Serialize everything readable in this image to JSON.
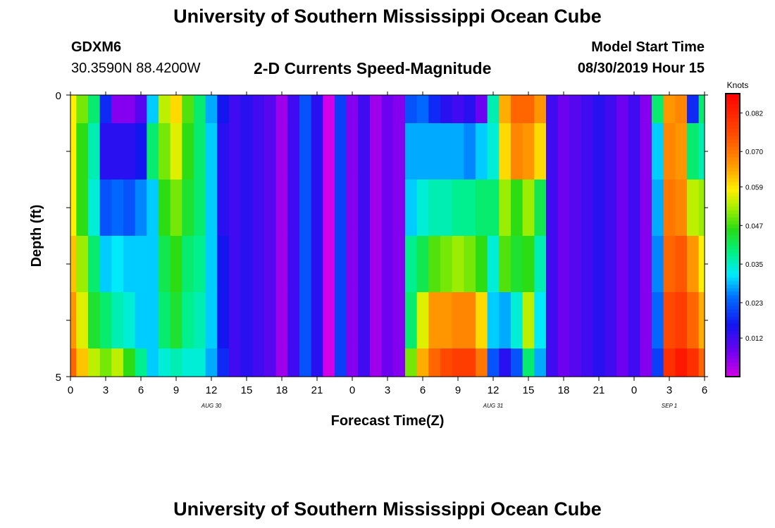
{
  "header": {
    "title": "University of Southern Mississippi Ocean Cube",
    "station": "GDXM6",
    "coords": "30.3590N 88.4200W",
    "subtitle": "2-D Currents Speed-Magnitude",
    "model_start_label": "Model Start Time",
    "model_start_value": "08/30/2019 Hour 15"
  },
  "footer": {
    "title": "University of Southern Mississippi Ocean Cube"
  },
  "colorbar": {
    "unit": "Knots",
    "tick_labels": [
      "0.082",
      "0.070",
      "0.059",
      "0.047",
      "0.035",
      "0.023",
      "0.012"
    ],
    "min": 0.0,
    "max": 0.088
  },
  "chart_data": {
    "type": "heatmap",
    "xlabel": "Forecast Time(Z)",
    "ylabel": "Depth (ft)",
    "x_tick_labels": [
      "0",
      "3",
      "6",
      "9",
      "12",
      "15",
      "18",
      "21",
      "0",
      "3",
      "6",
      "9",
      "12",
      "15",
      "18",
      "21",
      "0",
      "3",
      "6"
    ],
    "date_labels": [
      "AUG 30",
      "AUG 31",
      "SEP 1"
    ],
    "y_tick_labels": [
      "0",
      "5"
    ],
    "ylim": [
      0,
      5
    ],
    "x_range_hours": [
      0,
      54
    ],
    "depth_rows": 6,
    "time_steps": 55,
    "values_by_time": [
      [
        0.058,
        0.058,
        0.058,
        0.062,
        0.066,
        0.072
      ],
      [
        0.05,
        0.046,
        0.046,
        0.052,
        0.056,
        0.062
      ],
      [
        0.04,
        0.036,
        0.034,
        0.04,
        0.044,
        0.054
      ],
      [
        0.018,
        0.014,
        0.022,
        0.03,
        0.04,
        0.05
      ],
      [
        0.006,
        0.014,
        0.024,
        0.032,
        0.036,
        0.054
      ],
      [
        0.006,
        0.014,
        0.022,
        0.03,
        0.034,
        0.046
      ],
      [
        0.01,
        0.016,
        0.026,
        0.03,
        0.03,
        0.038
      ],
      [
        0.03,
        0.04,
        0.03,
        0.03,
        0.03,
        0.03
      ],
      [
        0.054,
        0.05,
        0.046,
        0.042,
        0.04,
        0.034
      ],
      [
        0.06,
        0.056,
        0.05,
        0.046,
        0.044,
        0.036
      ],
      [
        0.048,
        0.046,
        0.044,
        0.04,
        0.038,
        0.034
      ],
      [
        0.04,
        0.04,
        0.04,
        0.038,
        0.036,
        0.034
      ],
      [
        0.028,
        0.03,
        0.03,
        0.03,
        0.03,
        0.028
      ],
      [
        0.016,
        0.014,
        0.014,
        0.016,
        0.016,
        0.018
      ],
      [
        0.012,
        0.012,
        0.012,
        0.012,
        0.012,
        0.012
      ],
      [
        0.014,
        0.014,
        0.014,
        0.014,
        0.014,
        0.014
      ],
      [
        0.012,
        0.012,
        0.012,
        0.012,
        0.012,
        0.012
      ],
      [
        0.01,
        0.01,
        0.01,
        0.01,
        0.01,
        0.01
      ],
      [
        0.004,
        0.004,
        0.004,
        0.004,
        0.004,
        0.004
      ],
      [
        0.012,
        0.012,
        0.012,
        0.012,
        0.012,
        0.012
      ],
      [
        0.022,
        0.022,
        0.022,
        0.022,
        0.022,
        0.022
      ],
      [
        0.014,
        0.014,
        0.014,
        0.014,
        0.014,
        0.014
      ],
      [
        0.0,
        0.0,
        0.0,
        0.0,
        0.0,
        0.0
      ],
      [
        0.02,
        0.02,
        0.02,
        0.02,
        0.02,
        0.02
      ],
      [
        0.006,
        0.006,
        0.006,
        0.006,
        0.006,
        0.006
      ],
      [
        0.012,
        0.012,
        0.012,
        0.012,
        0.012,
        0.012
      ],
      [
        0.004,
        0.004,
        0.004,
        0.004,
        0.004,
        0.004
      ],
      [
        0.008,
        0.008,
        0.008,
        0.008,
        0.008,
        0.008
      ],
      [
        0.006,
        0.006,
        0.006,
        0.006,
        0.006,
        0.006
      ],
      [
        0.022,
        0.028,
        0.03,
        0.038,
        0.04,
        0.05
      ],
      [
        0.024,
        0.028,
        0.034,
        0.042,
        0.056,
        0.064
      ],
      [
        0.018,
        0.028,
        0.036,
        0.048,
        0.066,
        0.072
      ],
      [
        0.014,
        0.028,
        0.036,
        0.05,
        0.066,
        0.076
      ],
      [
        0.012,
        0.028,
        0.038,
        0.052,
        0.068,
        0.078
      ],
      [
        0.014,
        0.026,
        0.038,
        0.05,
        0.068,
        0.078
      ],
      [
        0.008,
        0.03,
        0.04,
        0.046,
        0.06,
        0.07
      ],
      [
        0.036,
        0.034,
        0.04,
        0.034,
        0.03,
        0.022
      ],
      [
        0.064,
        0.06,
        0.052,
        0.048,
        0.028,
        0.014
      ],
      [
        0.072,
        0.068,
        0.046,
        0.044,
        0.034,
        0.022
      ],
      [
        0.072,
        0.066,
        0.052,
        0.046,
        0.054,
        0.04
      ],
      [
        0.066,
        0.06,
        0.042,
        0.036,
        0.032,
        0.028
      ],
      [
        0.012,
        0.012,
        0.012,
        0.012,
        0.012,
        0.012
      ],
      [
        0.008,
        0.008,
        0.008,
        0.008,
        0.008,
        0.008
      ],
      [
        0.01,
        0.01,
        0.01,
        0.01,
        0.01,
        0.01
      ],
      [
        0.012,
        0.012,
        0.012,
        0.012,
        0.012,
        0.012
      ],
      [
        0.014,
        0.014,
        0.014,
        0.014,
        0.014,
        0.014
      ],
      [
        0.012,
        0.012,
        0.012,
        0.012,
        0.012,
        0.012
      ],
      [
        0.008,
        0.008,
        0.008,
        0.008,
        0.008,
        0.008
      ],
      [
        0.012,
        0.012,
        0.012,
        0.012,
        0.012,
        0.012
      ],
      [
        0.006,
        0.006,
        0.006,
        0.006,
        0.006,
        0.006
      ],
      [
        0.04,
        0.03,
        0.028,
        0.026,
        0.024,
        0.02
      ],
      [
        0.066,
        0.068,
        0.07,
        0.072,
        0.076,
        0.08
      ],
      [
        0.068,
        0.066,
        0.068,
        0.074,
        0.078,
        0.084
      ],
      [
        0.018,
        0.04,
        0.054,
        0.066,
        0.072,
        0.08
      ],
      [
        0.04,
        0.036,
        0.052,
        0.058,
        0.064,
        0.072
      ]
    ]
  }
}
